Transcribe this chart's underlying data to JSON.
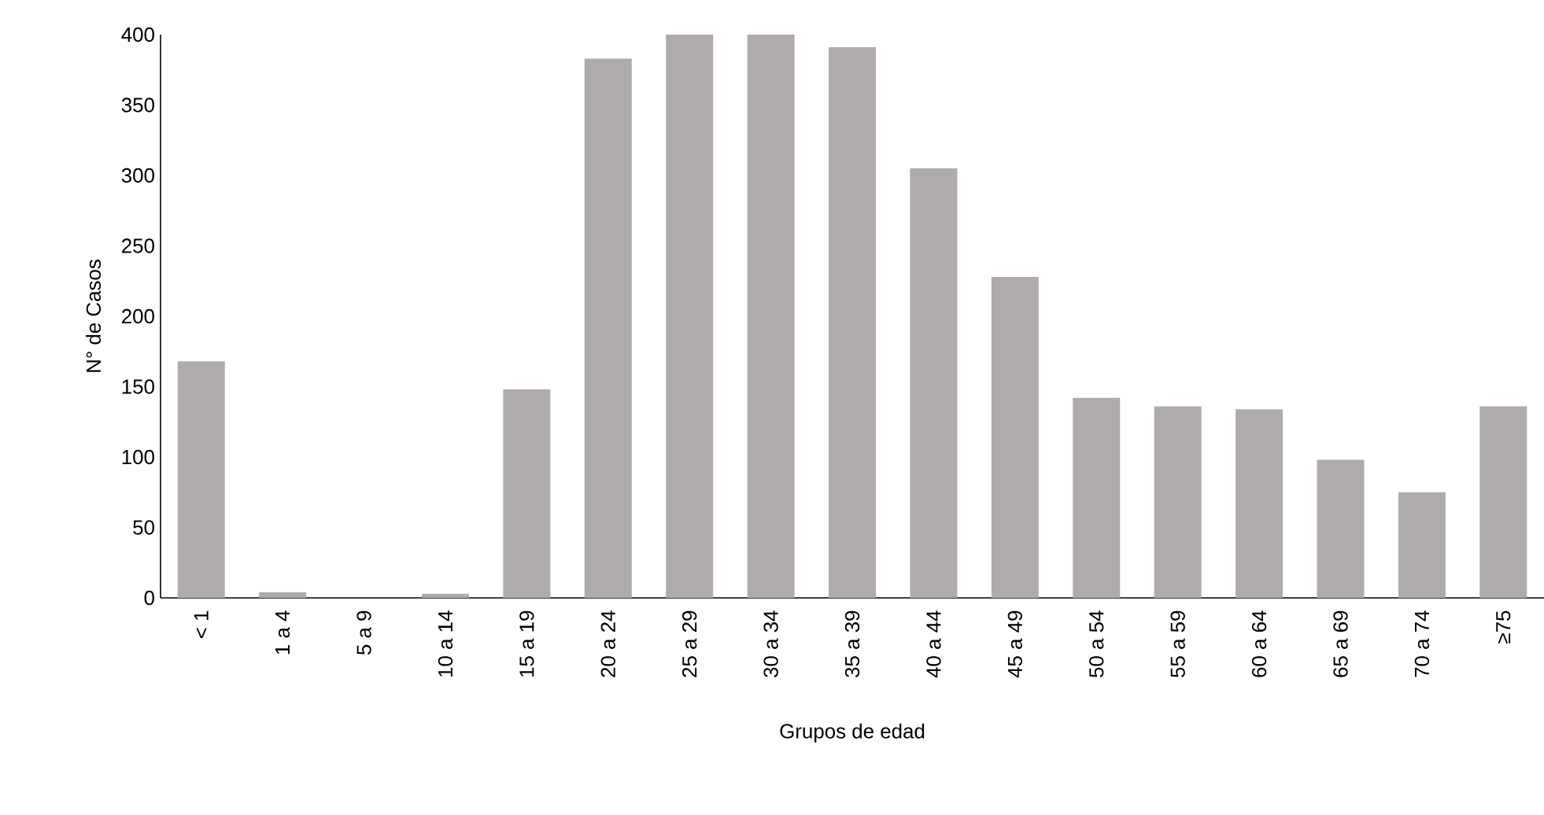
{
  "chart_data": {
    "type": "bar",
    "xlabel": "Grupos de edad",
    "ylabel": "N° de Casos",
    "categories": [
      "< 1",
      "1 a 4",
      "5 a 9",
      "10 a 14",
      "15 a 19",
      "20 a 24",
      "25 a 29",
      "30 a 34",
      "35 a 39",
      "40 a 44",
      "45 a 49",
      "50 a 54",
      "55 a 59",
      "60 a 64",
      "65 a 69",
      "70 a 74",
      "≥75"
    ],
    "values": [
      168,
      4,
      0,
      3,
      148,
      383,
      400,
      400,
      391,
      305,
      228,
      142,
      136,
      134,
      98,
      75,
      136
    ],
    "color": "#afabab",
    "ylim": [
      0,
      400
    ],
    "yticks": [
      0,
      50,
      100,
      150,
      200,
      250,
      300,
      350,
      400
    ]
  }
}
